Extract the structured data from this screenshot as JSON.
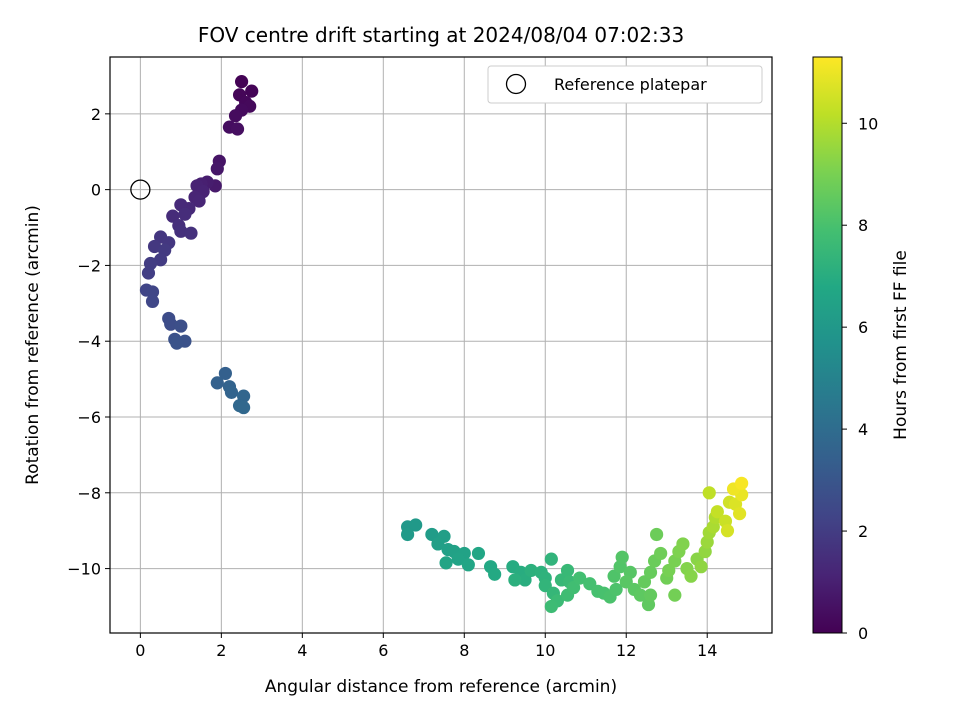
{
  "chart_data": {
    "type": "scatter",
    "title": "FOV centre drift starting at 2024/08/04 07:02:33",
    "xlabel": "Angular distance from reference (arcmin)",
    "ylabel": "Rotation from reference (arcmin)",
    "xlim": [
      -0.75,
      15.6
    ],
    "ylim": [
      -11.7,
      3.5
    ],
    "xticks": [
      0,
      2,
      4,
      6,
      8,
      10,
      12,
      14
    ],
    "yticks": [
      2,
      0,
      -2,
      -4,
      -6,
      -8,
      -10
    ],
    "xtick_labels": [
      "0",
      "2",
      "4",
      "6",
      "8",
      "10",
      "12",
      "14"
    ],
    "ytick_labels": [
      "2",
      "0",
      "−2",
      "−4",
      "−6",
      "−8",
      "−10"
    ],
    "grid": true,
    "legend": {
      "placement": "top-right",
      "entries": [
        "Reference platepar"
      ]
    },
    "reference_point": {
      "x": 0,
      "y": 0,
      "label": "Reference platepar"
    },
    "colorbar": {
      "label": "Hours from first FF file",
      "min": 0,
      "max": 11.3,
      "ticks": [
        0,
        2,
        4,
        6,
        8,
        10
      ],
      "tick_labels": [
        "0",
        "2",
        "4",
        "6",
        "8",
        "10"
      ],
      "colormap": "viridis"
    },
    "points": [
      [
        2.5,
        2.85,
        0.05
      ],
      [
        2.75,
        2.6,
        0.1
      ],
      [
        2.45,
        2.5,
        0.15
      ],
      [
        2.6,
        2.3,
        0.2
      ],
      [
        2.7,
        2.2,
        0.25
      ],
      [
        2.5,
        2.1,
        0.3
      ],
      [
        2.35,
        1.95,
        0.35
      ],
      [
        2.2,
        1.65,
        0.4
      ],
      [
        2.4,
        1.6,
        0.45
      ],
      [
        1.95,
        0.75,
        0.6
      ],
      [
        1.9,
        0.55,
        0.7
      ],
      [
        1.85,
        0.1,
        0.8
      ],
      [
        1.65,
        0.2,
        0.9
      ],
      [
        1.5,
        0.15,
        1.0
      ],
      [
        1.4,
        0.1,
        1.05
      ],
      [
        1.55,
        -0.05,
        1.1
      ],
      [
        1.35,
        -0.2,
        1.15
      ],
      [
        1.45,
        -0.3,
        1.2
      ],
      [
        1.2,
        -0.5,
        1.3
      ],
      [
        1.0,
        -0.4,
        1.35
      ],
      [
        0.8,
        -0.7,
        1.4
      ],
      [
        1.1,
        -0.65,
        1.45
      ],
      [
        0.95,
        -0.95,
        1.5
      ],
      [
        1.0,
        -1.1,
        1.55
      ],
      [
        1.25,
        -1.15,
        1.6
      ],
      [
        0.5,
        -1.25,
        1.75
      ],
      [
        0.7,
        -1.4,
        1.8
      ],
      [
        0.35,
        -1.5,
        1.85
      ],
      [
        0.6,
        -1.6,
        1.9
      ],
      [
        0.5,
        -1.85,
        1.95
      ],
      [
        0.25,
        -1.95,
        2.0
      ],
      [
        0.2,
        -2.2,
        2.05
      ],
      [
        0.15,
        -2.65,
        2.3
      ],
      [
        0.3,
        -2.7,
        2.35
      ],
      [
        0.3,
        -2.95,
        2.4
      ],
      [
        0.7,
        -3.4,
        2.6
      ],
      [
        0.75,
        -3.55,
        2.65
      ],
      [
        1.0,
        -3.6,
        2.7
      ],
      [
        0.85,
        -3.95,
        2.8
      ],
      [
        1.1,
        -4.0,
        2.85
      ],
      [
        0.9,
        -4.05,
        2.9
      ],
      [
        2.1,
        -4.85,
        3.45
      ],
      [
        1.9,
        -5.1,
        3.5
      ],
      [
        2.2,
        -5.2,
        3.55
      ],
      [
        2.25,
        -5.35,
        3.6
      ],
      [
        2.55,
        -5.45,
        3.7
      ],
      [
        2.45,
        -5.7,
        3.75
      ],
      [
        2.55,
        -5.75,
        3.8
      ],
      [
        6.6,
        -8.9,
        6.0
      ],
      [
        6.8,
        -8.85,
        6.05
      ],
      [
        6.6,
        -9.1,
        6.1
      ],
      [
        7.2,
        -9.1,
        6.2
      ],
      [
        7.5,
        -9.15,
        6.3
      ],
      [
        7.35,
        -9.35,
        6.35
      ],
      [
        7.6,
        -9.5,
        6.4
      ],
      [
        7.75,
        -9.55,
        6.45
      ],
      [
        8.0,
        -9.6,
        6.5
      ],
      [
        7.85,
        -9.75,
        6.55
      ],
      [
        7.55,
        -9.85,
        6.6
      ],
      [
        8.1,
        -9.9,
        6.65
      ],
      [
        8.35,
        -9.6,
        6.7
      ],
      [
        8.65,
        -9.95,
        6.8
      ],
      [
        8.75,
        -10.15,
        6.85
      ],
      [
        9.2,
        -9.95,
        6.95
      ],
      [
        9.4,
        -10.1,
        7.0
      ],
      [
        9.5,
        -10.3,
        7.05
      ],
      [
        9.25,
        -10.3,
        7.1
      ],
      [
        9.65,
        -10.05,
        7.15
      ],
      [
        9.9,
        -10.1,
        7.2
      ],
      [
        10.0,
        -10.25,
        7.25
      ],
      [
        10.15,
        -9.75,
        7.3
      ],
      [
        10.0,
        -10.45,
        7.35
      ],
      [
        10.2,
        -10.65,
        7.45
      ],
      [
        10.4,
        -10.3,
        7.5
      ],
      [
        10.55,
        -10.05,
        7.55
      ],
      [
        10.6,
        -10.35,
        7.6
      ],
      [
        10.3,
        -10.85,
        7.65
      ],
      [
        10.15,
        -11.0,
        7.7
      ],
      [
        10.55,
        -10.7,
        7.75
      ],
      [
        10.7,
        -10.5,
        7.8
      ],
      [
        10.85,
        -10.25,
        7.85
      ],
      [
        11.1,
        -10.4,
        7.9
      ],
      [
        11.3,
        -10.6,
        7.95
      ],
      [
        11.45,
        -10.65,
        8.0
      ],
      [
        11.6,
        -10.75,
        8.05
      ],
      [
        11.75,
        -10.55,
        8.1
      ],
      [
        11.7,
        -10.2,
        8.15
      ],
      [
        11.85,
        -9.95,
        8.2
      ],
      [
        11.9,
        -9.7,
        8.25
      ],
      [
        12.1,
        -10.1,
        8.3
      ],
      [
        12.0,
        -10.35,
        8.35
      ],
      [
        12.2,
        -10.55,
        8.4
      ],
      [
        12.35,
        -10.7,
        8.45
      ],
      [
        12.55,
        -10.95,
        8.5
      ],
      [
        12.6,
        -10.7,
        8.55
      ],
      [
        12.45,
        -10.35,
        8.6
      ],
      [
        12.6,
        -10.1,
        8.65
      ],
      [
        12.7,
        -9.8,
        8.7
      ],
      [
        12.75,
        -9.1,
        8.75
      ],
      [
        12.85,
        -9.6,
        8.8
      ],
      [
        13.0,
        -10.25,
        8.85
      ],
      [
        13.2,
        -10.7,
        8.9
      ],
      [
        13.05,
        -10.05,
        8.95
      ],
      [
        13.2,
        -9.8,
        9.0
      ],
      [
        13.3,
        -9.55,
        9.1
      ],
      [
        13.4,
        -9.35,
        9.15
      ],
      [
        13.5,
        -10.0,
        9.2
      ],
      [
        13.6,
        -10.2,
        9.25
      ],
      [
        13.75,
        -9.75,
        9.3
      ],
      [
        13.85,
        -9.95,
        9.4
      ],
      [
        13.95,
        -9.55,
        9.45
      ],
      [
        14.0,
        -9.3,
        9.6
      ],
      [
        14.05,
        -9.05,
        9.7
      ],
      [
        14.15,
        -8.9,
        9.85
      ],
      [
        14.2,
        -8.65,
        9.95
      ],
      [
        14.05,
        -8.0,
        10.2
      ],
      [
        14.25,
        -8.5,
        10.3
      ],
      [
        14.45,
        -8.75,
        10.4
      ],
      [
        14.55,
        -8.25,
        10.5
      ],
      [
        14.5,
        -9.0,
        10.6
      ],
      [
        14.7,
        -8.3,
        10.7
      ],
      [
        14.8,
        -8.55,
        10.8
      ],
      [
        14.85,
        -8.05,
        10.95
      ],
      [
        14.65,
        -7.9,
        11.05
      ],
      [
        14.85,
        -7.75,
        11.2
      ]
    ]
  }
}
